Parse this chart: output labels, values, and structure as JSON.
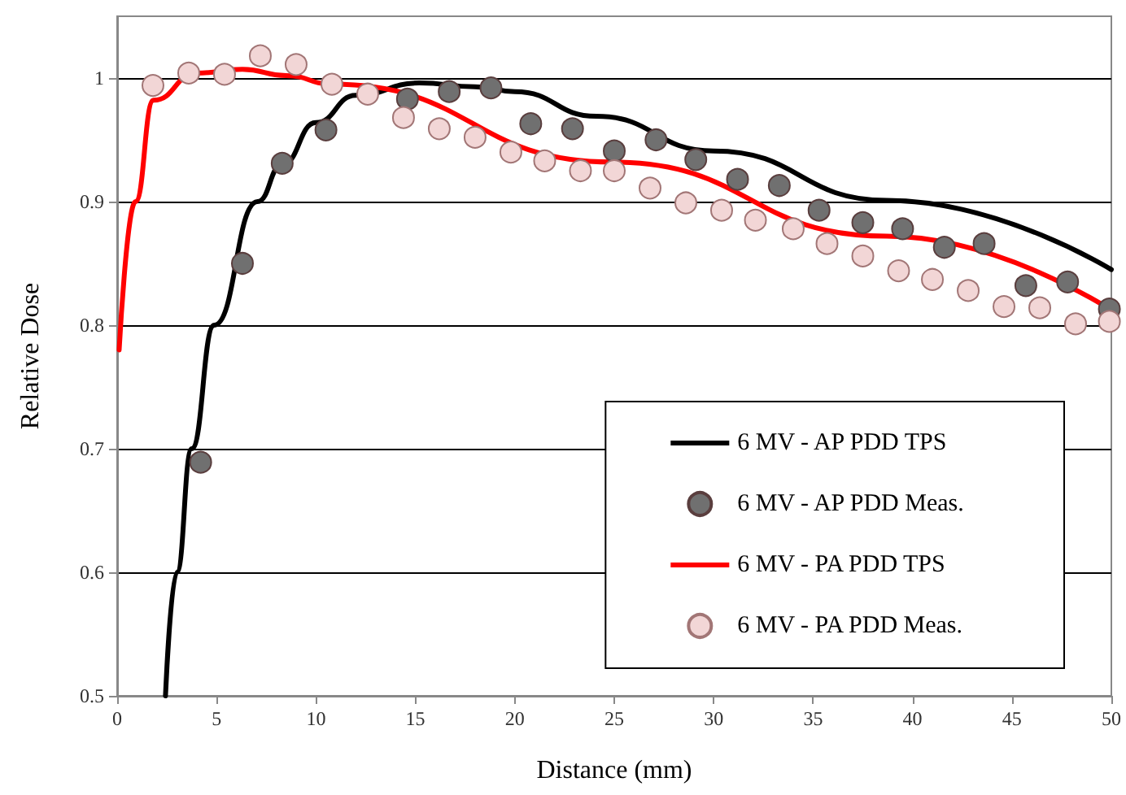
{
  "chart_data": {
    "type": "line",
    "xlabel": "Distance (mm)",
    "ylabel": "Relative Dose",
    "xlim": [
      0,
      50
    ],
    "xticks": [
      0,
      5,
      10,
      15,
      20,
      25,
      30,
      35,
      40,
      45,
      50
    ],
    "ylim": [
      0.5,
      1.05
    ],
    "yticks": [
      0.5,
      0.6,
      0.7,
      0.8,
      0.9,
      1
    ],
    "grid": "y",
    "legend": "bottom right",
    "series": [
      {
        "name": "6 MV - AP PDD TPS",
        "color": "#000000",
        "marker": "none",
        "x": [
          2.43,
          3,
          3.75,
          4.88,
          7.06,
          8.3,
          10,
          12,
          15.2,
          18,
          20,
          24.1,
          30,
          38.7,
          50
        ],
        "values": [
          0.5,
          0.6,
          0.7,
          0.8,
          0.9,
          0.93,
          0.964,
          0.986,
          0.996,
          0.993,
          0.989,
          0.969,
          0.941,
          0.901,
          0.845
        ]
      },
      {
        "name": "6 MV - AP PDD Meas.",
        "type": "scatter",
        "color": "#707070",
        "marker": "circle",
        "x": [
          4.2,
          6.3,
          8.3,
          10.5,
          14.6,
          16.7,
          18.8,
          20.8,
          22.9,
          25.0,
          27.1,
          29.1,
          31.2,
          33.3,
          35.3,
          37.5,
          39.5,
          41.6,
          43.6,
          45.7,
          47.8,
          49.9
        ],
        "values": [
          0.689,
          0.85,
          0.931,
          0.958,
          0.983,
          0.989,
          0.992,
          0.963,
          0.959,
          0.941,
          0.95,
          0.934,
          0.918,
          0.913,
          0.893,
          0.883,
          0.878,
          0.863,
          0.866,
          0.832,
          0.835,
          0.813
        ]
      },
      {
        "name": "6 MV - PA PDD TPS",
        "color": "#ff0000",
        "marker": "none",
        "x": [
          0.1,
          0.92,
          1.83,
          4,
          6.3,
          8.5,
          10.8,
          24.9,
          38.7,
          49.9
        ],
        "values": [
          0.78,
          0.9,
          0.982,
          1.004,
          1.007,
          1.002,
          0.995,
          0.932,
          0.872,
          0.813
        ]
      },
      {
        "name": "6 MV - PA PDD Meas.",
        "type": "scatter",
        "color": "#f2d6d6",
        "marker": "circle",
        "x": [
          1.8,
          3.6,
          5.4,
          7.2,
          9.0,
          10.8,
          12.6,
          14.4,
          16.2,
          18.0,
          19.8,
          21.5,
          23.3,
          25.0,
          26.8,
          28.6,
          30.4,
          32.1,
          34.0,
          35.7,
          37.5,
          39.3,
          41.0,
          42.8,
          44.6,
          46.4,
          48.2,
          49.9
        ],
        "values": [
          0.994,
          1.004,
          1.003,
          1.018,
          1.011,
          0.995,
          0.987,
          0.968,
          0.959,
          0.952,
          0.94,
          0.933,
          0.925,
          0.925,
          0.911,
          0.899,
          0.893,
          0.885,
          0.878,
          0.866,
          0.856,
          0.844,
          0.837,
          0.828,
          0.815,
          0.814,
          0.801,
          0.803
        ]
      }
    ]
  }
}
